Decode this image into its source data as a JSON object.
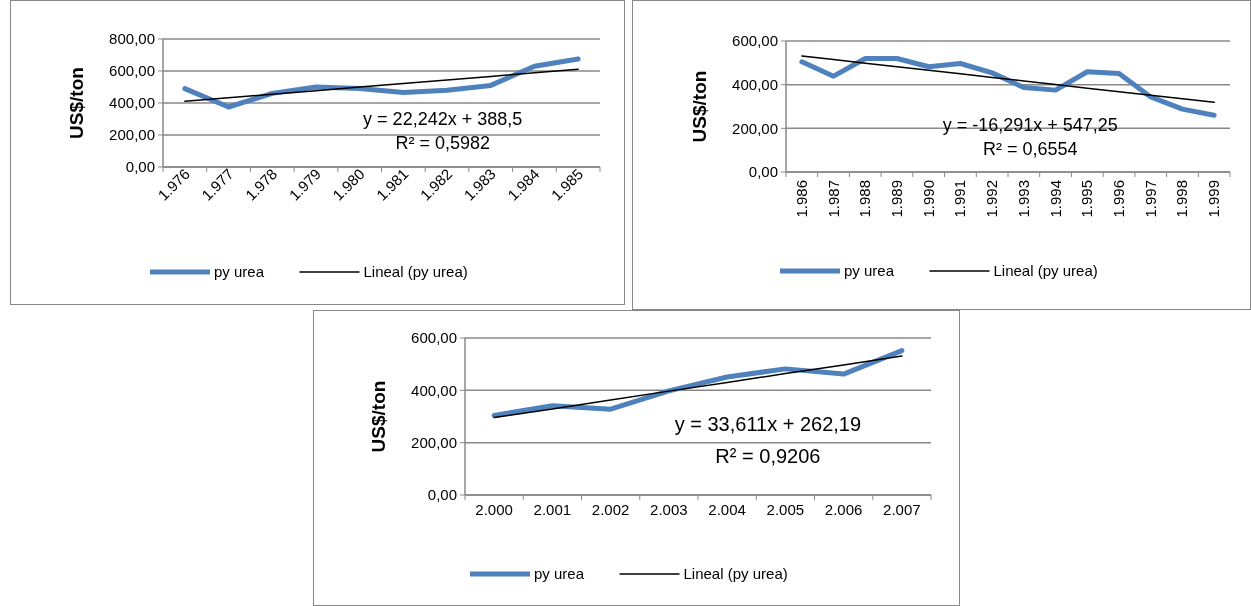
{
  "chart_data": [
    {
      "type": "line",
      "ylabel": "US$/ton",
      "categories": [
        "1.976",
        "1.977",
        "1.978",
        "1.979",
        "1.980",
        "1.981",
        "1.982",
        "1.983",
        "1.984",
        "1.985"
      ],
      "series": [
        {
          "name": "py urea",
          "color": "#4f81bd",
          "values": [
            490,
            375,
            460,
            500,
            490,
            465,
            480,
            510,
            630,
            675
          ]
        },
        {
          "name": "Lineal (py urea)",
          "color": "#000000",
          "values": [
            411,
            433,
            455,
            477,
            500,
            522,
            544,
            566,
            589,
            611
          ]
        }
      ],
      "ylim": [
        0,
        800
      ],
      "yticks": [
        {
          "value": 0,
          "label": "0,00"
        },
        {
          "value": 200,
          "label": "200,00"
        },
        {
          "value": 400,
          "label": "400,00"
        },
        {
          "value": 600,
          "label": "600,00"
        },
        {
          "value": 800,
          "label": "800,00"
        }
      ],
      "grid": "y",
      "legend": "bottom",
      "annotations": [
        "y = 22,242x + 388,5",
        "R² = 0,5982"
      ]
    },
    {
      "type": "line",
      "ylabel": "US$/ton",
      "categories": [
        "1.986",
        "1.987",
        "1.988",
        "1.989",
        "1.990",
        "1.991",
        "1.992",
        "1.993",
        "1.994",
        "1.995",
        "1.996",
        "1.997",
        "1.998",
        "1.999"
      ],
      "series": [
        {
          "name": "py urea",
          "color": "#4f81bd",
          "values": [
            505,
            439,
            520,
            520,
            482,
            497,
            454,
            387,
            375,
            459,
            451,
            344,
            288,
            260
          ]
        },
        {
          "name": "Lineal (py urea)",
          "color": "#000000",
          "values": [
            531,
            515,
            498,
            482,
            466,
            450,
            433,
            417,
            401,
            384,
            368,
            352,
            335,
            319
          ]
        }
      ],
      "ylim": [
        0,
        600
      ],
      "yticks": [
        {
          "value": 0,
          "label": "0,00"
        },
        {
          "value": 200,
          "label": "200,00"
        },
        {
          "value": 400,
          "label": "400,00"
        },
        {
          "value": 600,
          "label": "600,00"
        }
      ],
      "grid": "y",
      "legend": "bottom",
      "annotations": [
        "y = -16,291x + 547,25",
        "R² = 0,6554"
      ]
    },
    {
      "type": "line",
      "ylabel": "US$/ton",
      "categories": [
        "2.000",
        "2.001",
        "2.002",
        "2.003",
        "2.004",
        "2.005",
        "2.006",
        "2.007"
      ],
      "series": [
        {
          "name": "py urea",
          "color": "#4f81bd",
          "values": [
            304,
            341,
            328,
            398,
            451,
            482,
            462,
            552
          ]
        },
        {
          "name": "Lineal (py urea)",
          "color": "#000000",
          "values": [
            296,
            329,
            363,
            397,
            430,
            464,
            497,
            531
          ]
        }
      ],
      "ylim": [
        0,
        600
      ],
      "yticks": [
        {
          "value": 0,
          "label": "0,00"
        },
        {
          "value": 200,
          "label": "200,00"
        },
        {
          "value": 400,
          "label": "400,00"
        },
        {
          "value": 600,
          "label": "600,00"
        }
      ],
      "grid": "y",
      "legend": "bottom",
      "annotations": [
        "y = 33,611x + 262,19",
        "R² = 0,9206"
      ]
    }
  ]
}
